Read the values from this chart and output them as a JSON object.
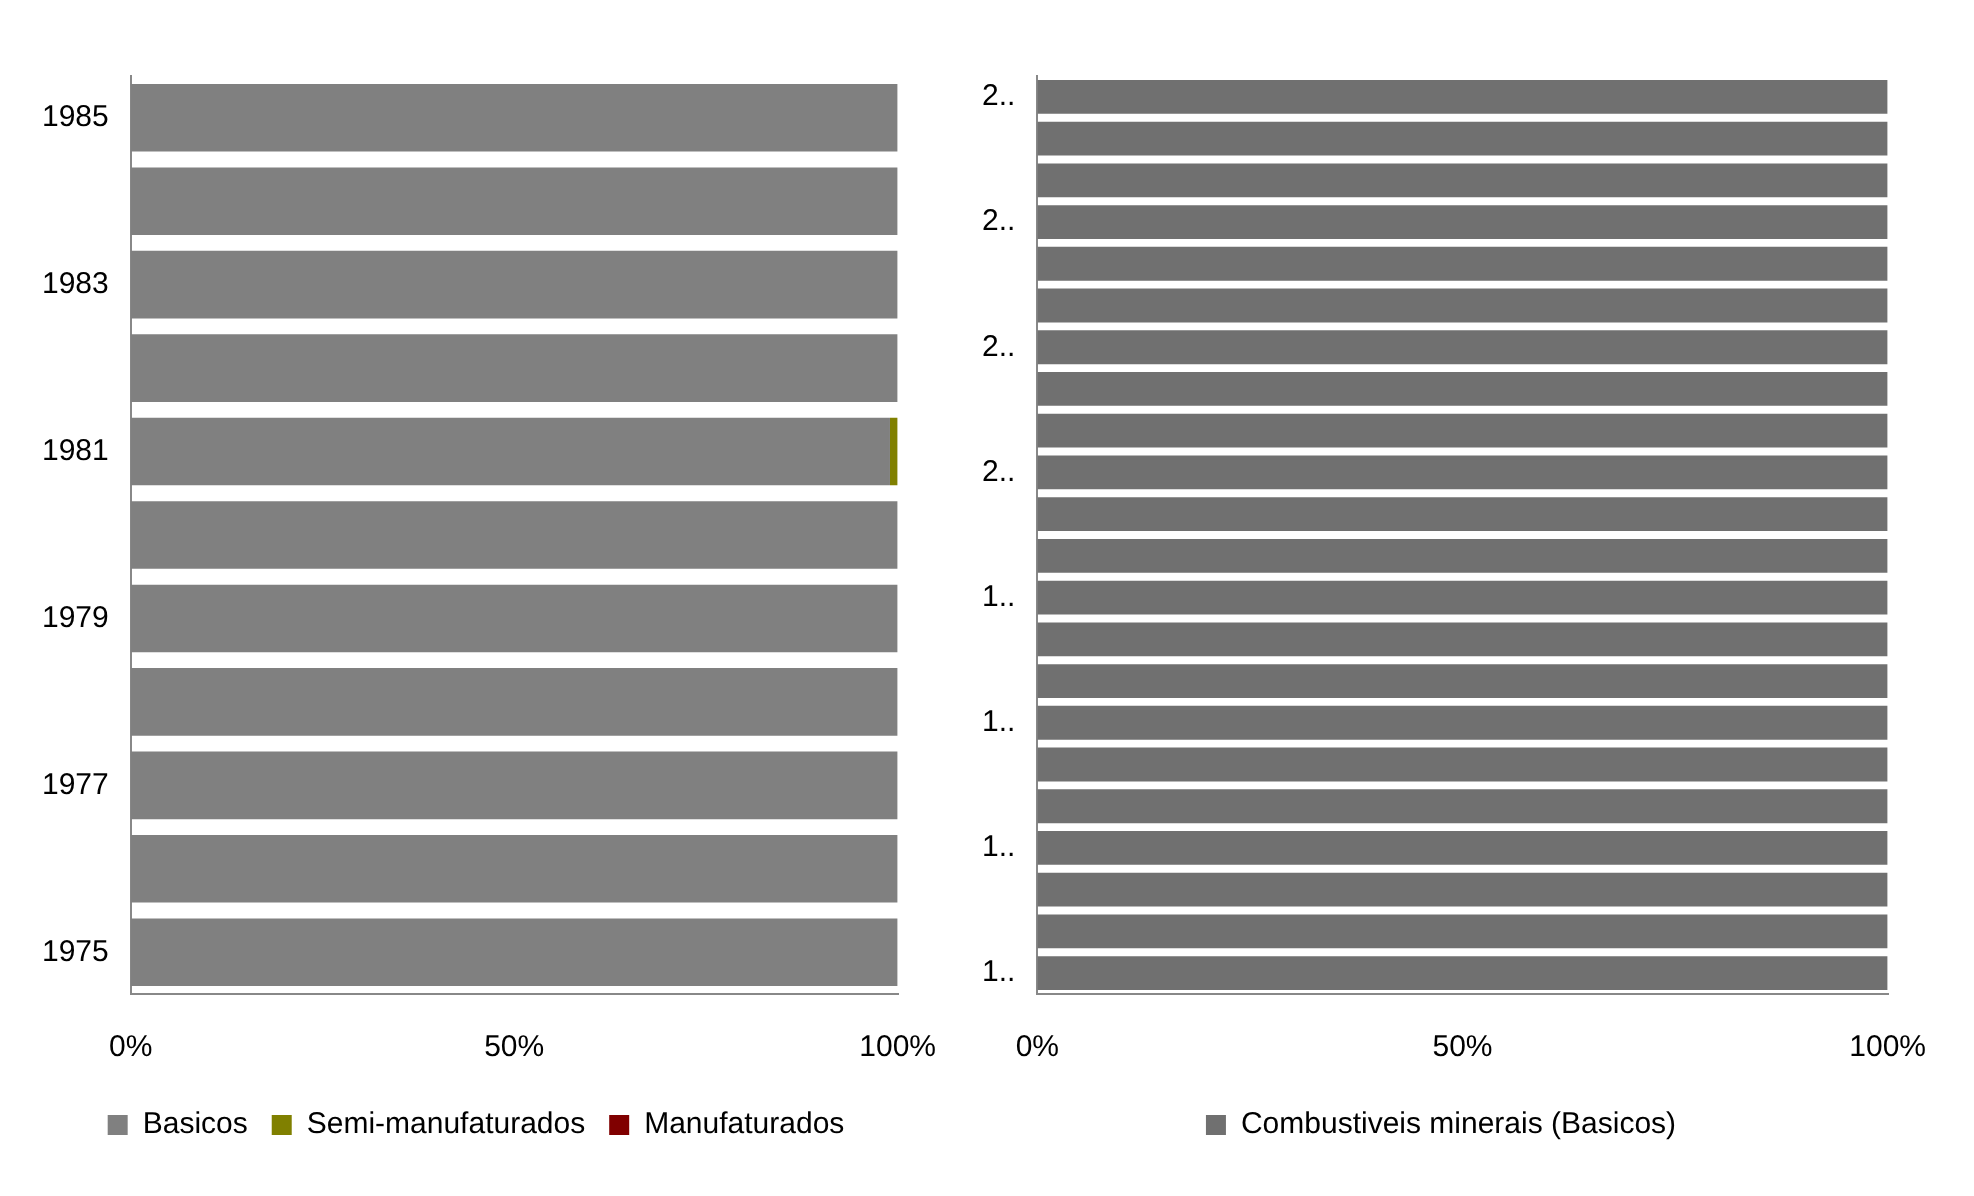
{
  "chart_data": [
    {
      "type": "bar",
      "orientation": "horizontal",
      "stacked": true,
      "categories": [
        "1985",
        null,
        "1983",
        null,
        "1981",
        null,
        "1979",
        null,
        "1977",
        null,
        "1975"
      ],
      "series": [
        {
          "name": "Basicos",
          "color": "#808080",
          "values": [
            100,
            100,
            100,
            100,
            99,
            100,
            100,
            100,
            100,
            100,
            100
          ]
        },
        {
          "name": "Semi-manufaturados",
          "color": "#808000",
          "values": [
            0,
            0,
            0,
            0,
            1,
            0,
            0,
            0,
            0,
            0,
            0
          ]
        },
        {
          "name": "Manufaturados",
          "color": "#800000",
          "values": [
            0,
            0,
            0,
            0,
            0,
            0,
            0,
            0,
            0,
            0,
            0
          ]
        }
      ],
      "xlim": [
        0,
        100
      ],
      "xticks": [
        {
          "value": 0,
          "label": "0%"
        },
        {
          "value": 50,
          "label": "50%"
        },
        {
          "value": 100,
          "label": "100%"
        }
      ],
      "grid": false,
      "legend": "bottom"
    },
    {
      "type": "bar",
      "orientation": "horizontal",
      "stacked": true,
      "categories": [
        "2..",
        null,
        null,
        "2..",
        null,
        null,
        "2..",
        null,
        null,
        "2..",
        null,
        null,
        "1..",
        null,
        null,
        "1..",
        null,
        null,
        "1..",
        null,
        null,
        "1.."
      ],
      "series": [
        {
          "name": "Combustiveis minerais (Basicos)",
          "color": "#707070",
          "values": [
            100,
            100,
            100,
            100,
            100,
            100,
            100,
            100,
            100,
            100,
            100,
            100,
            100,
            100,
            100,
            100,
            100,
            100,
            100,
            100,
            100,
            100
          ]
        }
      ],
      "xlim": [
        0,
        100
      ],
      "xticks": [
        {
          "value": 0,
          "label": "0%"
        },
        {
          "value": 50,
          "label": "50%"
        },
        {
          "value": 100,
          "label": "100%"
        }
      ],
      "grid": false,
      "legend": "bottom"
    }
  ]
}
